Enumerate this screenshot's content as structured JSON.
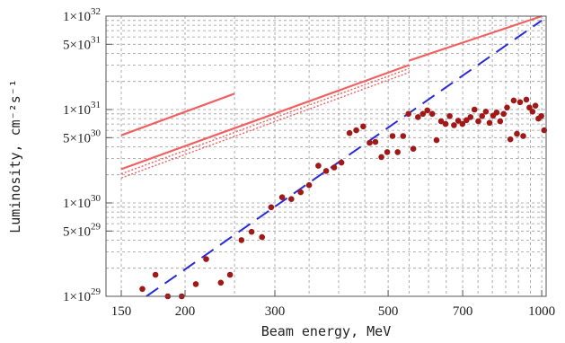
{
  "chart_data": {
    "type": "scatter",
    "title": "",
    "xlabel": "Beam energy, MeV",
    "ylabel": "Luminosity, cm⁻²s⁻¹",
    "xscale": "log",
    "yscale": "log",
    "xlim": [
      140,
      1020
    ],
    "ylim": [
      1e+29,
      1e+32
    ],
    "grid": "dashed",
    "x_ticks": [
      {
        "value": 150,
        "label": "150"
      },
      {
        "value": 200,
        "label": "200"
      },
      {
        "value": 300,
        "label": "300"
      },
      {
        "value": 500,
        "label": "500"
      },
      {
        "value": 700,
        "label": "700"
      },
      {
        "value": 1000,
        "label": "1000"
      }
    ],
    "y_ticks": [
      {
        "value": 1e+29,
        "mantissa": "1",
        "exp": "29"
      },
      {
        "value": 5e+29,
        "mantissa": "5",
        "exp": "29"
      },
      {
        "value": 1e+30,
        "mantissa": "1",
        "exp": "30"
      },
      {
        "value": 5e+30,
        "mantissa": "5",
        "exp": "30"
      },
      {
        "value": 1e+31,
        "mantissa": "1",
        "exp": "31"
      },
      {
        "value": 5e+31,
        "mantissa": "5",
        "exp": "31"
      },
      {
        "value": 1e+32,
        "mantissa": "1",
        "exp": "32"
      }
    ],
    "series": [
      {
        "style": "points",
        "color": "#a01818",
        "points": [
          [
            165,
            1.2e+29
          ],
          [
            175,
            1.7e+29
          ],
          [
            185,
            9.5e+28
          ],
          [
            197,
            9.5e+28
          ],
          [
            210,
            1.35e+29
          ],
          [
            220,
            2.5e+29
          ],
          [
            235,
            1.4e+29
          ],
          [
            245,
            1.7e+29
          ],
          [
            258,
            4e+29
          ],
          [
            270,
            4.9e+29
          ],
          [
            283,
            4.3e+29
          ],
          [
            295,
            9e+29
          ],
          [
            310,
            1.15e+30
          ],
          [
            323,
            1.1e+30
          ],
          [
            337,
            1.3e+30
          ],
          [
            350,
            1.55e+30
          ],
          [
            365,
            2.5e+30
          ],
          [
            378,
            2.2e+30
          ],
          [
            392,
            2.4e+30
          ],
          [
            405,
            2.7e+30
          ],
          [
            420,
            5.6e+30
          ],
          [
            433,
            6e+30
          ],
          [
            447,
            6.6e+30
          ],
          [
            460,
            4.4e+30
          ],
          [
            472,
            4.5e+30
          ],
          [
            485,
            3.1e+30
          ],
          [
            498,
            3.5e+30
          ],
          [
            510,
            5.2e+30
          ],
          [
            522,
            3.5e+30
          ],
          [
            535,
            5.2e+30
          ],
          [
            548,
            9e+30
          ],
          [
            560,
            3.8e+30
          ],
          [
            572,
            8.3e+30
          ],
          [
            585,
            9e+30
          ],
          [
            597,
            9.8e+30
          ],
          [
            610,
            9e+30
          ],
          [
            622,
            4.7e+30
          ],
          [
            635,
            7.5e+30
          ],
          [
            648,
            7e+30
          ],
          [
            660,
            8.5e+30
          ],
          [
            673,
            6.8e+30
          ],
          [
            686,
            7.6e+30
          ],
          [
            699,
            7e+30
          ],
          [
            712,
            7.7e+30
          ],
          [
            725,
            8.3e+30
          ],
          [
            738,
            1e+31
          ],
          [
            751,
            7.5e+30
          ],
          [
            764,
            8.5e+30
          ],
          [
            777,
            9.5e+30
          ],
          [
            790,
            7.2e+30
          ],
          [
            803,
            8.6e+30
          ],
          [
            816,
            9.3e+30
          ],
          [
            829,
            7.5e+30
          ],
          [
            842,
            9e+30
          ],
          [
            855,
            1.05e+31
          ],
          [
            868,
            4.8e+30
          ],
          [
            881,
            1.25e+31
          ],
          [
            894,
            5.5e+30
          ],
          [
            907,
            1.2e+31
          ],
          [
            920,
            5.2e+30
          ],
          [
            933,
            1.28e+31
          ],
          [
            946,
            1.05e+31
          ],
          [
            959,
            9.5e+30
          ],
          [
            972,
            1.1e+31
          ],
          [
            985,
            8e+30
          ],
          [
            998,
            8.5e+30
          ],
          [
            1011,
            6e+30
          ],
          [
            1024,
            7.5e+30
          ],
          [
            1037,
            6e+30
          ],
          [
            1050,
            4.5e+30
          ]
        ]
      },
      {
        "style": "solid",
        "color": "#f06060",
        "segments": [
          [
            [
              150,
              5.3e+30
            ],
            [
              250,
              1.48e+31
            ]
          ],
          [
            [
              550,
              3.35e+31
            ],
            [
              1000,
              1e+32
            ]
          ]
        ]
      },
      {
        "style": "solid",
        "color": "#f06060",
        "segments": [
          [
            [
              150,
              2.3e+30
            ],
            [
              550,
              3e+31
            ]
          ]
        ]
      },
      {
        "style": "dotted",
        "color": "#f06060",
        "segments": [
          [
            [
              150,
              2.05e+30
            ],
            [
              550,
              2.75e+31
            ]
          ],
          [
            [
              150,
              1.85e+30
            ],
            [
              550,
              2.5e+31
            ]
          ]
        ]
      },
      {
        "style": "dashed",
        "color": "#2a2ad8",
        "segments": [
          [
            [
              168,
              1e+29
            ],
            [
              1000,
              9e+31
            ]
          ]
        ]
      }
    ]
  }
}
